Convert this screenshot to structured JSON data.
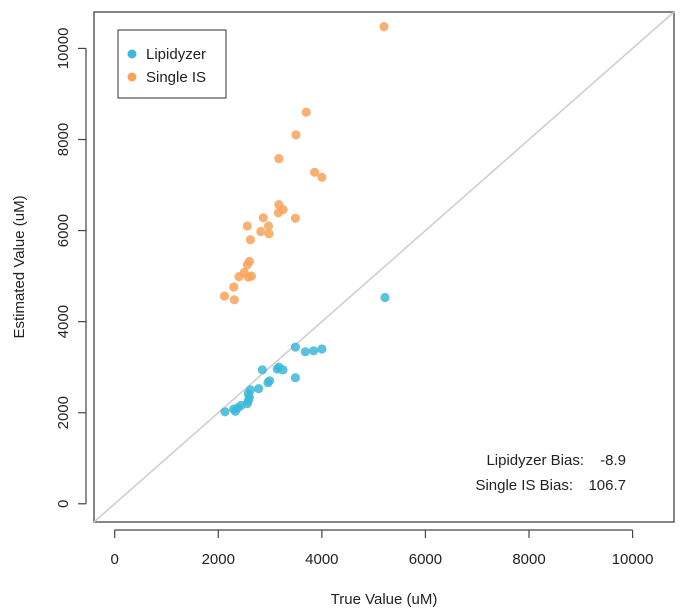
{
  "chart_data": {
    "type": "scatter",
    "title": "",
    "xlabel": "True Value (uM)",
    "ylabel": "Estimated Value (uM)",
    "xlim": [
      -400,
      10800
    ],
    "ylim": [
      -400,
      10800
    ],
    "x_ticks": [
      0,
      2000,
      4000,
      6000,
      8000,
      10000
    ],
    "y_ticks": [
      0,
      2000,
      4000,
      6000,
      8000,
      10000
    ],
    "x_tick_labels": [
      "0",
      "2000",
      "4000",
      "6000",
      "8000",
      "10000"
    ],
    "y_tick_labels": [
      "0",
      "2000",
      "4000",
      "6000",
      "8000",
      "10000"
    ],
    "grid": false,
    "legend_position": "top-left",
    "reference_line": "identity",
    "series": [
      {
        "name": "Lipidyzer",
        "color": "#3cb9d8",
        "points": [
          [
            2130,
            2020
          ],
          [
            2300,
            2080
          ],
          [
            2330,
            2030
          ],
          [
            2380,
            2110
          ],
          [
            2440,
            2160
          ],
          [
            2560,
            2200
          ],
          [
            2580,
            2260
          ],
          [
            2600,
            2340
          ],
          [
            2580,
            2420
          ],
          [
            2620,
            2500
          ],
          [
            2780,
            2530
          ],
          [
            2850,
            2940
          ],
          [
            2960,
            2660
          ],
          [
            2990,
            2700
          ],
          [
            3140,
            2960
          ],
          [
            3170,
            3000
          ],
          [
            3250,
            2940
          ],
          [
            3490,
            3440
          ],
          [
            3490,
            2770
          ],
          [
            3680,
            3340
          ],
          [
            3840,
            3360
          ],
          [
            4000,
            3400
          ],
          [
            5220,
            4530
          ]
        ]
      },
      {
        "name": "Single IS",
        "color": "#f8a35a",
        "points": [
          [
            2120,
            4560
          ],
          [
            2310,
            4480
          ],
          [
            2300,
            4760
          ],
          [
            2400,
            4990
          ],
          [
            2500,
            5080
          ],
          [
            2560,
            5250
          ],
          [
            2600,
            5320
          ],
          [
            2580,
            4980
          ],
          [
            2640,
            5000
          ],
          [
            2560,
            6100
          ],
          [
            2620,
            5800
          ],
          [
            2820,
            5980
          ],
          [
            2870,
            6280
          ],
          [
            2970,
            6100
          ],
          [
            2980,
            5930
          ],
          [
            3170,
            6570
          ],
          [
            3160,
            6390
          ],
          [
            3250,
            6460
          ],
          [
            3490,
            6270
          ],
          [
            3170,
            7580
          ],
          [
            3500,
            8100
          ],
          [
            3700,
            8600
          ],
          [
            3860,
            7280
          ],
          [
            4000,
            7170
          ],
          [
            5200,
            10480
          ]
        ]
      }
    ],
    "annotations": [
      {
        "label": "Lipidyzer Bias:",
        "value": "-8.9"
      },
      {
        "label": "Single IS Bias:",
        "value": "106.7"
      }
    ]
  }
}
